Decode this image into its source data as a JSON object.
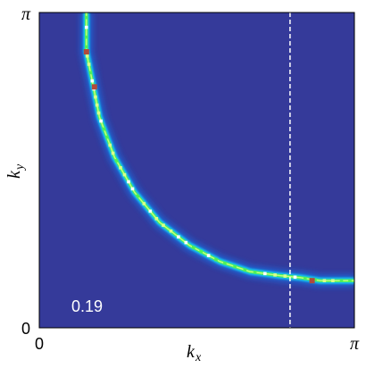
{
  "chart_data": {
    "type": "heatmap",
    "title": "",
    "xlabel": "k_x",
    "ylabel": "k_y",
    "x_ticks": [
      "0",
      "π"
    ],
    "y_ticks": [
      "0",
      "π"
    ],
    "xlim": [
      0,
      3.14159
    ],
    "ylim": [
      0,
      3.14159
    ],
    "annotation": "0.19",
    "colormap": [
      "#353a9a",
      "#1f63d6",
      "#12c8f0",
      "#4df05a",
      "#d8ff8a",
      "#ffffff"
    ],
    "reference_line": {
      "axis": "x",
      "value": 2.5,
      "style": "dashed",
      "color": "#ffffff"
    },
    "contour": {
      "description_points_kx_ky": [
        [
          0.47,
          3.14
        ],
        [
          0.47,
          2.75
        ],
        [
          0.52,
          2.5
        ],
        [
          0.6,
          2.1
        ],
        [
          0.75,
          1.7
        ],
        [
          0.95,
          1.35
        ],
        [
          1.2,
          1.05
        ],
        [
          1.5,
          0.82
        ],
        [
          1.8,
          0.66
        ],
        [
          2.1,
          0.56
        ],
        [
          2.4,
          0.52
        ],
        [
          2.6,
          0.5
        ],
        [
          2.8,
          0.47
        ],
        [
          3.14,
          0.47
        ]
      ],
      "hotspots_kx_ky": [
        [
          0.47,
          2.75
        ],
        [
          0.55,
          2.4
        ],
        [
          2.72,
          0.47
        ]
      ]
    },
    "grid": false,
    "legend": "none"
  }
}
